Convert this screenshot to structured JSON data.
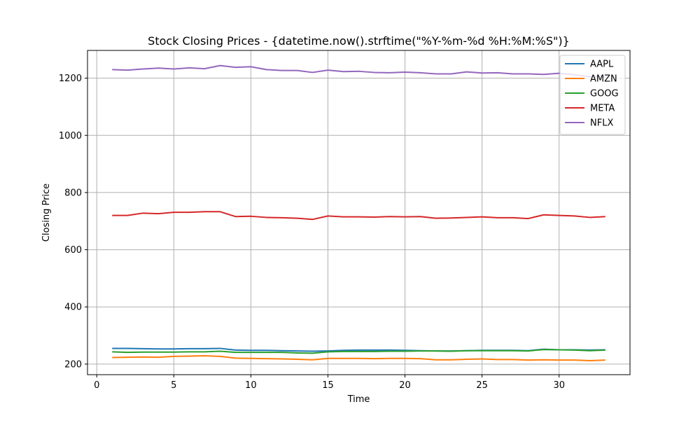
{
  "chart_data": {
    "type": "line",
    "title": "Stock Closing Prices - {datetime.now().strftime(\"%Y-%m-%d %H:%M:%S\")}",
    "xlabel": "Time",
    "ylabel": "Closing Price",
    "xlim": [
      -0.6,
      34.6
    ],
    "ylim": [
      163,
      1297
    ],
    "xticks": [
      0,
      5,
      10,
      15,
      20,
      25,
      30
    ],
    "yticks": [
      200,
      400,
      600,
      800,
      1000,
      1200
    ],
    "grid": true,
    "legend_position": "top-right",
    "x": [
      1,
      2,
      3,
      4,
      5,
      6,
      7,
      8,
      9,
      10,
      11,
      12,
      13,
      14,
      15,
      16,
      17,
      18,
      19,
      20,
      21,
      22,
      23,
      24,
      25,
      26,
      27,
      28,
      29,
      30,
      31,
      32,
      33
    ],
    "series": [
      {
        "name": "AAPL",
        "color": "#1f77b4",
        "values": [
          255,
          255,
          254,
          253,
          253,
          254,
          254,
          255,
          249,
          248,
          248,
          247,
          246,
          245,
          246,
          248,
          249,
          249,
          249,
          248,
          247,
          246,
          246,
          247,
          248,
          248,
          248,
          247,
          252,
          250,
          250,
          249,
          250
        ]
      },
      {
        "name": "AMZN",
        "color": "#ff7f0e",
        "values": [
          223,
          224,
          225,
          224,
          227,
          228,
          229,
          227,
          221,
          220,
          219,
          218,
          217,
          215,
          220,
          220,
          220,
          219,
          220,
          220,
          219,
          215,
          215,
          217,
          218,
          216,
          216,
          214,
          215,
          214,
          214,
          212,
          214
        ]
      },
      {
        "name": "GOOG",
        "color": "#2ca02c",
        "values": [
          243,
          241,
          242,
          242,
          242,
          243,
          243,
          245,
          241,
          241,
          241,
          241,
          239,
          238,
          243,
          244,
          244,
          244,
          245,
          245,
          246,
          246,
          245,
          247,
          247,
          247,
          247,
          246,
          251,
          250,
          249,
          247,
          249
        ]
      },
      {
        "name": "META",
        "color": "#d62728",
        "values": [
          720,
          720,
          728,
          726,
          731,
          731,
          733,
          733,
          716,
          717,
          713,
          712,
          710,
          706,
          718,
          715,
          715,
          714,
          716,
          715,
          716,
          710,
          711,
          713,
          715,
          712,
          712,
          709,
          722,
          720,
          718,
          713,
          716
        ]
      },
      {
        "name": "NFLX",
        "color": "#9467bd",
        "values": [
          1230,
          1228,
          1232,
          1235,
          1232,
          1236,
          1233,
          1244,
          1238,
          1240,
          1230,
          1227,
          1227,
          1220,
          1228,
          1223,
          1224,
          1220,
          1219,
          1221,
          1219,
          1215,
          1215,
          1222,
          1218,
          1219,
          1215,
          1215,
          1213,
          1217,
          1212,
          1205,
          1205
        ]
      }
    ]
  }
}
